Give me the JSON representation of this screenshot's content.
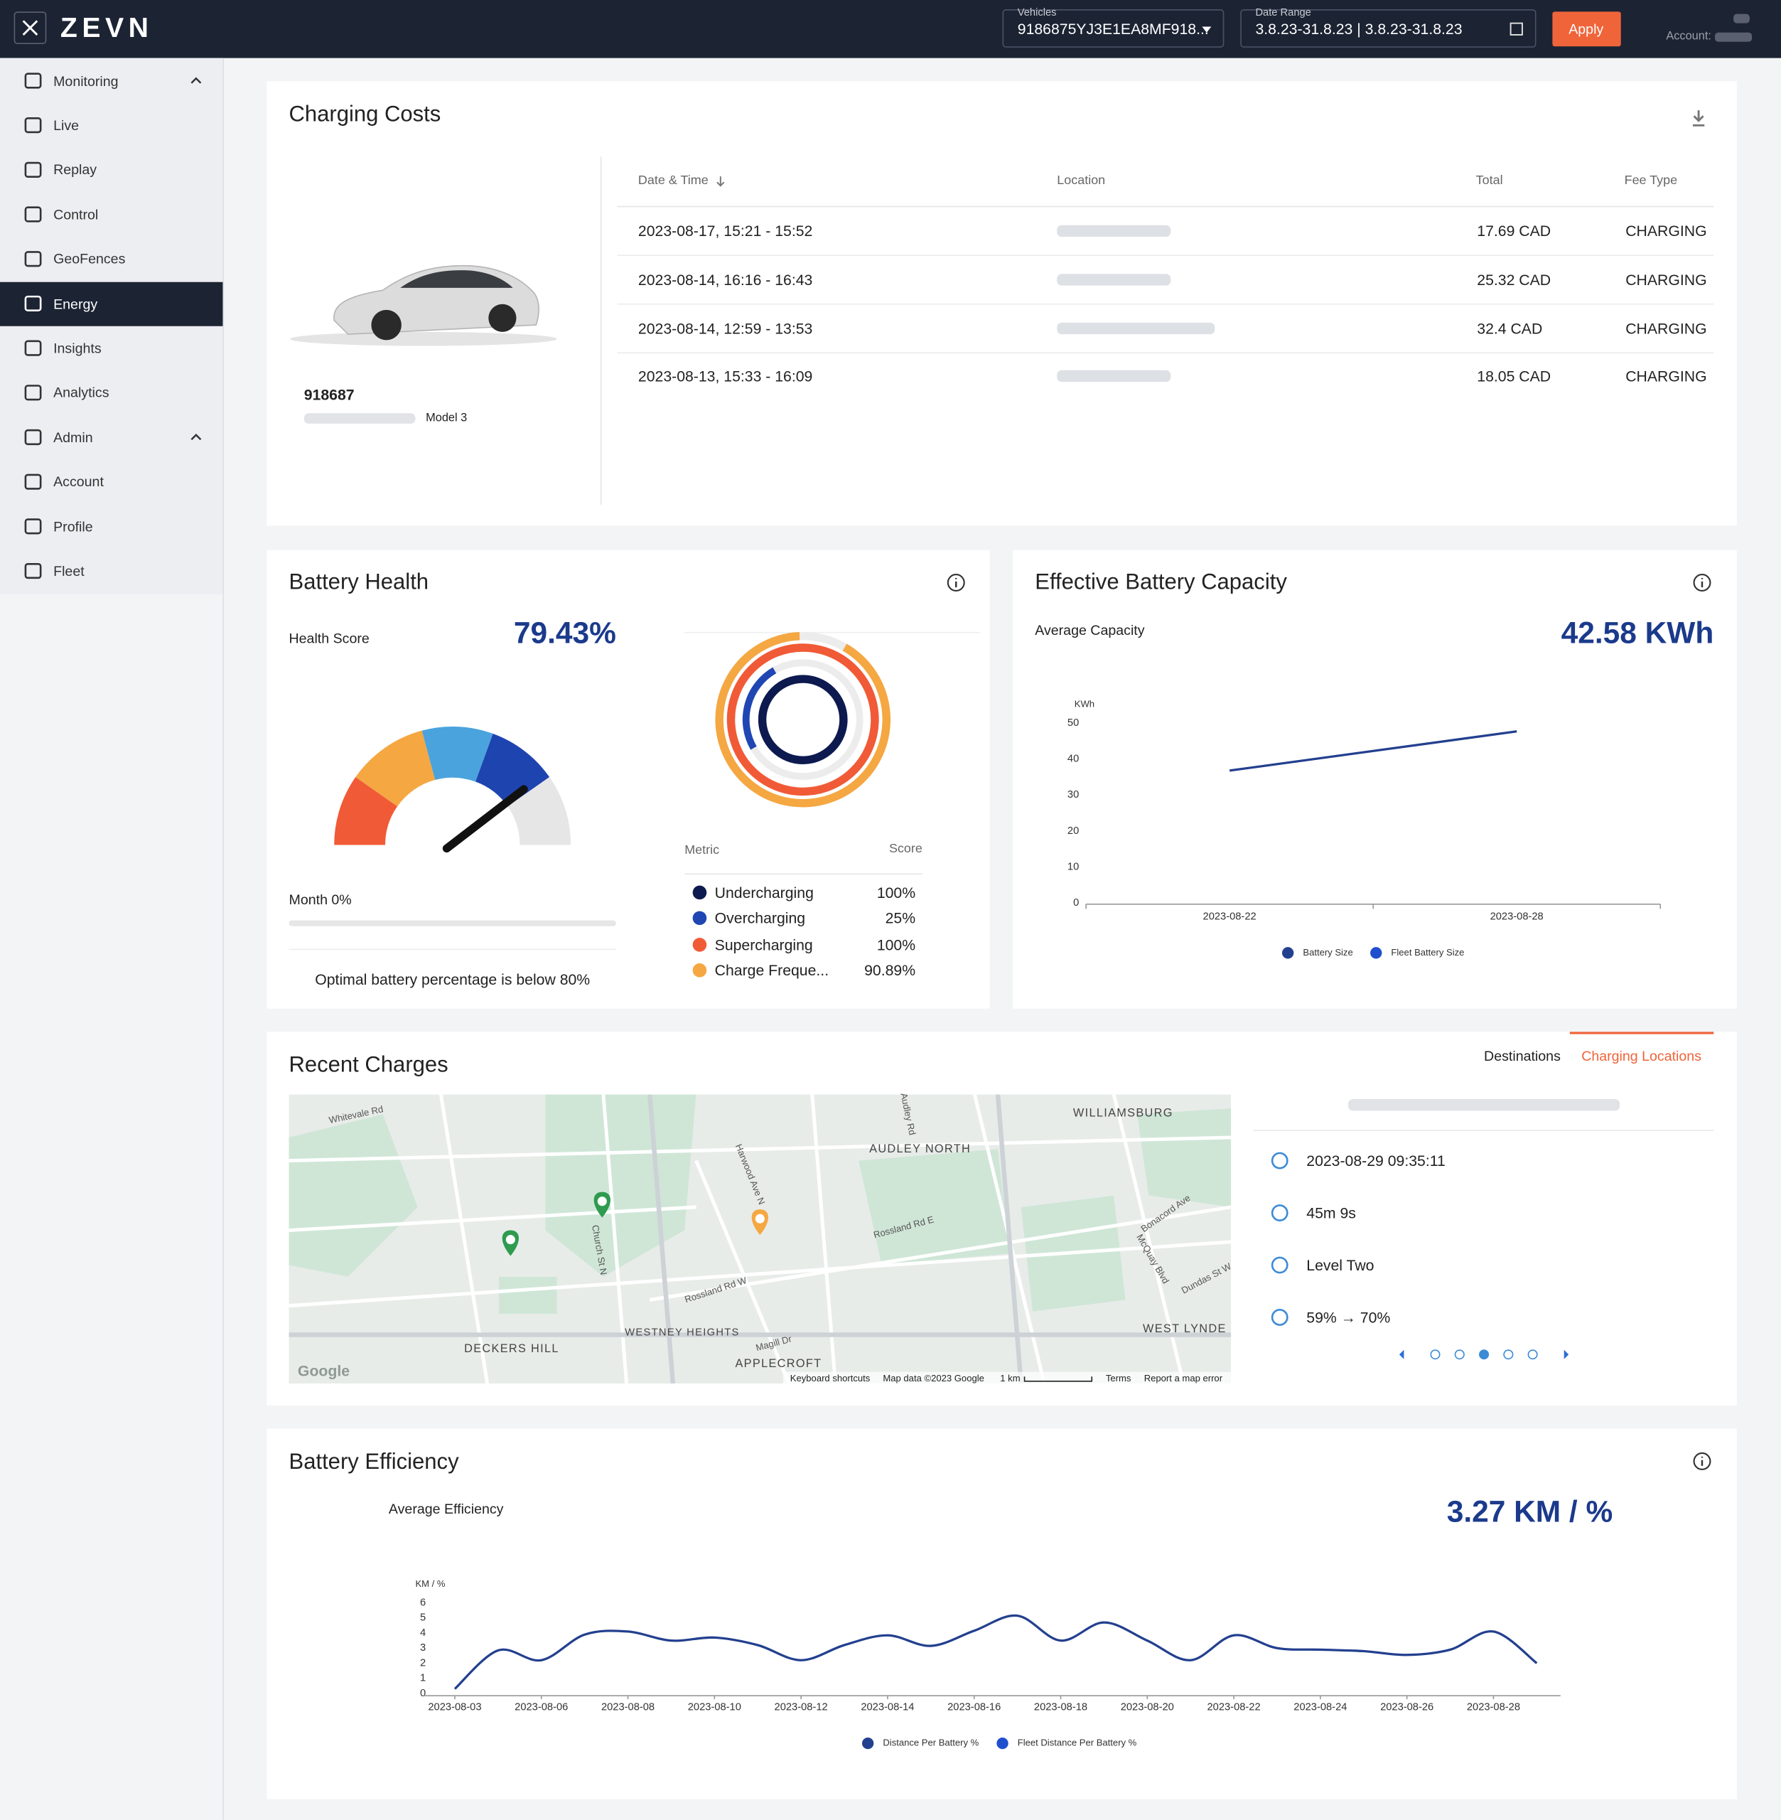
{
  "header": {
    "logo": "ZEVN",
    "vehicles_label": "Vehicles",
    "vehicles_value": "9186875YJ3E1EA8MF918...",
    "date_range_label": "Date Range",
    "date_range_value": "3.8.23-31.8.23 | 3.8.23-31.8.23",
    "apply": "Apply",
    "account_label": "Account:"
  },
  "sidebar": {
    "active": "Energy",
    "items": [
      {
        "label": "Monitoring",
        "group": true
      },
      {
        "label": "Live"
      },
      {
        "label": "Replay"
      },
      {
        "label": "Control"
      },
      {
        "label": "GeoFences"
      },
      {
        "label": "Energy"
      },
      {
        "label": "Insights"
      },
      {
        "label": "Analytics"
      },
      {
        "label": "Admin",
        "group": true
      },
      {
        "label": "Account"
      },
      {
        "label": "Profile"
      },
      {
        "label": "Fleet"
      }
    ]
  },
  "charging_costs": {
    "title": "Charging Costs",
    "vehicle_id": "918687",
    "model": "Model 3",
    "columns": [
      "Date & Time",
      "Location",
      "Total",
      "Fee Type"
    ],
    "rows": [
      {
        "datetime": "2023-08-17, 15:21 - 15:52",
        "total": "17.69 CAD",
        "fee_type": "CHARGING"
      },
      {
        "datetime": "2023-08-14, 16:16 - 16:43",
        "total": "25.32 CAD",
        "fee_type": "CHARGING"
      },
      {
        "datetime": "2023-08-14, 12:59 - 13:53",
        "total": "32.4 CAD",
        "fee_type": "CHARGING"
      },
      {
        "datetime": "2023-08-13, 15:33 - 16:09",
        "total": "18.05 CAD",
        "fee_type": "CHARGING"
      }
    ]
  },
  "battery_health": {
    "title": "Battery Health",
    "health_score_label": "Health Score",
    "health_score": "79.43%",
    "month_label": "Month 0%",
    "note": "Optimal battery percentage is below 80%",
    "metric_header": "Metric",
    "score_header": "Score",
    "metrics": [
      {
        "name": "Undercharging",
        "score": "100%",
        "color": "#0d1a4f"
      },
      {
        "name": "Overcharging",
        "score": "25%",
        "color": "#2046b4"
      },
      {
        "name": "Supercharging",
        "score": "100%",
        "color": "#f15a37"
      },
      {
        "name": "Charge Freque...",
        "score": "90.89%",
        "color": "#f5a742"
      }
    ]
  },
  "effective_capacity": {
    "title": "Effective Battery Capacity",
    "average_label": "Average Capacity",
    "average_value": "42.58 KWh"
  },
  "recent_charges": {
    "title": "Recent Charges",
    "tabs": [
      "Destinations",
      "Charging Locations"
    ],
    "active_tab": "Charging Locations",
    "details": {
      "datetime": "2023-08-29 09:35:11",
      "duration": "45m 9s",
      "level": "Level Two",
      "battery": "59% → 70%"
    },
    "map_labels": [
      "WILLIAMSBURG",
      "AUDLEY NORTH",
      "WESTNEY HEIGHTS",
      "DECKERS HILL",
      "APPLECROFT",
      "WEST LYNDE",
      "Rossland Rd W",
      "Rossland Rd E",
      "Whitevale Rd",
      "Church St N",
      "Harwood Ave N",
      "Bonacord Ave",
      "Dundas St W",
      "Magill Dr",
      "Audley Rd",
      "McQuay Blvd"
    ],
    "map_footer": [
      "Google",
      "Keyboard shortcuts",
      "Map data ©2023 Google",
      "1 km",
      "Terms",
      "Report a map error"
    ]
  },
  "battery_efficiency": {
    "title": "Battery Efficiency",
    "average_label": "Average Efficiency",
    "average_value": "3.27 KM / %"
  },
  "chart_data": [
    {
      "type": "line",
      "y_label": "KWh",
      "categories": [
        "2023-08-22",
        "2023-08-28"
      ],
      "ylim": [
        0,
        50
      ],
      "yticks": [
        0,
        10,
        20,
        30,
        40,
        50
      ],
      "series": [
        {
          "name": "Battery Size",
          "color": "#23408f",
          "values": [
            36.8,
            47.7
          ]
        },
        {
          "name": "Fleet Battery Size",
          "color": "#1f4fcf",
          "values": [
            null,
            null
          ]
        }
      ]
    },
    {
      "type": "line",
      "smooth": true,
      "y_label": "KM / %",
      "categories": [
        "2023-08-03",
        null,
        "2023-08-06",
        null,
        "2023-08-08",
        null,
        "2023-08-10",
        null,
        "2023-08-12",
        null,
        "2023-08-14",
        null,
        "2023-08-16",
        null,
        "2023-08-18",
        null,
        "2023-08-20",
        null,
        "2023-08-22",
        null,
        "2023-08-24",
        null,
        "2023-08-26",
        null,
        "2023-08-28",
        null
      ],
      "ylim": [
        0,
        6
      ],
      "yticks": [
        0,
        1,
        2,
        3,
        4,
        5,
        6
      ],
      "series": [
        {
          "name": "Distance Per Battery %",
          "color": "#23408f",
          "values": [
            0.3,
            2.85,
            2.2,
            3.9,
            4.1,
            3.5,
            3.7,
            3.2,
            2.2,
            3.2,
            3.85,
            3.15,
            4.15,
            5.15,
            3.5,
            4.7,
            3.5,
            2.2,
            3.85,
            3.0,
            2.9,
            2.8,
            2.55,
            2.9,
            4.1,
            2.0
          ]
        },
        {
          "name": "Fleet Distance Per Battery %",
          "color": "#1f4fcf",
          "values": [
            null,
            null,
            null,
            null,
            null,
            null,
            null,
            null,
            null,
            null,
            null,
            null,
            null,
            null,
            null,
            null,
            null,
            null,
            null,
            null,
            null,
            null,
            null,
            null,
            null,
            null
          ]
        }
      ]
    }
  ]
}
